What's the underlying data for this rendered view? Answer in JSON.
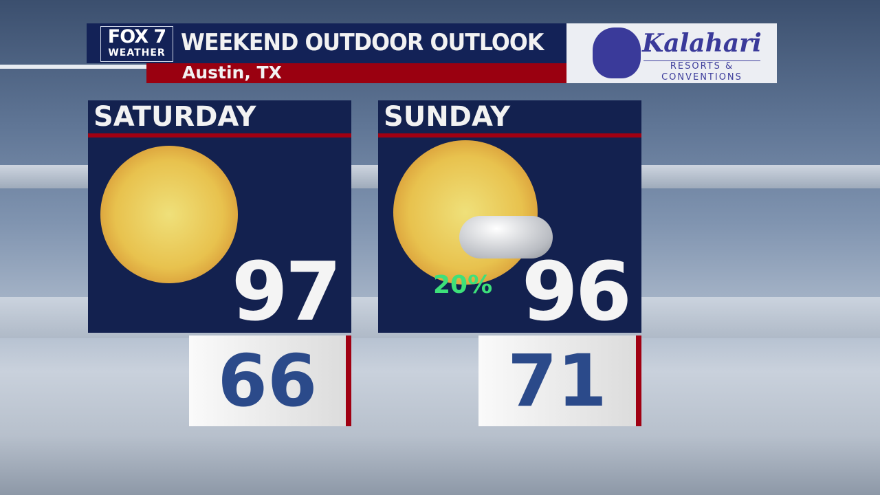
{
  "header": {
    "logo_top": "FOX 7",
    "logo_bottom": "WEATHER",
    "title": "WEEKEND OUTDOOR OUTLOOK",
    "location": "Austin, TX"
  },
  "sponsor": {
    "name": "Kalahari",
    "tagline_1": "RESORTS &",
    "tagline_2": "CONVENTIONS",
    "color": "#3a3a9a"
  },
  "days": [
    {
      "day": "SATURDAY",
      "icon": "sunny-icon",
      "high": "97",
      "low": "66"
    },
    {
      "day": "SUNDAY",
      "icon": "mostly-sunny-icon",
      "precip": "20%",
      "high": "96",
      "low": "71"
    }
  ],
  "colors": {
    "navy": "#13214f",
    "red": "#a00012",
    "precip": "#3de07a",
    "low_text": "#2b4a8a"
  }
}
